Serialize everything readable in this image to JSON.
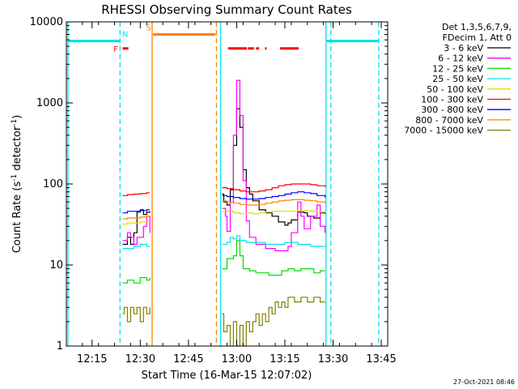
{
  "chart_data": {
    "type": "line",
    "title": "RHESSI Observing Summary Count Rates",
    "xlabel": "Start Time (16-Mar-15 12:07:02)",
    "ylabel_main": "Count Rate (s",
    "ylabel_sup1": "-1",
    "ylabel_mid": " detector",
    "ylabel_sup2": "-1",
    "ylabel_end": ")",
    "y_scale": "log",
    "ylim": [
      1,
      10000
    ],
    "xlim_min": [
      7,
      107
    ],
    "x_ticks": [
      {
        "label": "12:15",
        "min": 15
      },
      {
        "label": "12:30",
        "min": 30
      },
      {
        "label": "12:45",
        "min": 45
      },
      {
        "label": "13:00",
        "min": 60
      },
      {
        "label": "13:15",
        "min": 75
      },
      {
        "label": "13:30",
        "min": 90
      },
      {
        "label": "13:45",
        "min": 105
      }
    ],
    "y_ticks": [
      {
        "label": "1",
        "v": 1
      },
      {
        "label": "10",
        "v": 10
      },
      {
        "label": "100",
        "v": 100
      },
      {
        "label": "1000",
        "v": 1000
      },
      {
        "label": "10000",
        "v": 10000
      }
    ],
    "legend_header": [
      "Det 1,3,5,6,7,9,",
      "FDecim 1, Att 0"
    ],
    "legend_position": "right",
    "series": [
      {
        "name": "3 - 6 keV",
        "color": "#000000",
        "seg1": [
          [
            24.5,
            18
          ],
          [
            26,
            22
          ],
          [
            27,
            18
          ],
          [
            28,
            25
          ],
          [
            29,
            45
          ],
          [
            30,
            48
          ],
          [
            31,
            42
          ],
          [
            32,
            45
          ],
          [
            33,
            44
          ]
        ],
        "seg2": [
          [
            55.5,
            75
          ],
          [
            56,
            60
          ],
          [
            57,
            55
          ],
          [
            58,
            85
          ],
          [
            59,
            300
          ],
          [
            60,
            850
          ],
          [
            61,
            500
          ],
          [
            62,
            150
          ],
          [
            63,
            90
          ],
          [
            64,
            75
          ],
          [
            65,
            62
          ],
          [
            67,
            48
          ],
          [
            69,
            44
          ],
          [
            71,
            40
          ],
          [
            73,
            34
          ],
          [
            75,
            31
          ],
          [
            76,
            33
          ],
          [
            77,
            36
          ],
          [
            79,
            45
          ],
          [
            81,
            44
          ],
          [
            82,
            40
          ],
          [
            84,
            38
          ],
          [
            86,
            44
          ],
          [
            87.5,
            43
          ]
        ]
      },
      {
        "name": "6 - 12 keV",
        "color": "#ff00ff",
        "seg1": [
          [
            24.5,
            20
          ],
          [
            26,
            25
          ],
          [
            27,
            22
          ],
          [
            28,
            18
          ],
          [
            29,
            22
          ],
          [
            31,
            30
          ],
          [
            32,
            40
          ],
          [
            33,
            25
          ]
        ],
        "seg2": [
          [
            55.5,
            50
          ],
          [
            56.5,
            40
          ],
          [
            57,
            26
          ],
          [
            58,
            60
          ],
          [
            59,
            400
          ],
          [
            60,
            1900
          ],
          [
            61,
            700
          ],
          [
            62,
            110
          ],
          [
            63,
            35
          ],
          [
            64,
            22
          ],
          [
            66,
            18
          ],
          [
            69,
            16
          ],
          [
            72,
            15
          ],
          [
            75,
            15
          ],
          [
            76,
            17
          ],
          [
            77,
            25
          ],
          [
            79,
            60
          ],
          [
            80,
            40
          ],
          [
            81,
            28
          ],
          [
            83,
            40
          ],
          [
            85,
            55
          ],
          [
            86,
            30
          ],
          [
            87.5,
            25
          ]
        ]
      },
      {
        "name": "12 - 25 keV",
        "color": "#00dd00",
        "seg1": [
          [
            24.5,
            6
          ],
          [
            26,
            6.5
          ],
          [
            28,
            6
          ],
          [
            30,
            7
          ],
          [
            32,
            6.5
          ],
          [
            33,
            7
          ]
        ],
        "seg2": [
          [
            55.5,
            9
          ],
          [
            57,
            12
          ],
          [
            58,
            12
          ],
          [
            59,
            13
          ],
          [
            60,
            20
          ],
          [
            61,
            13
          ],
          [
            62,
            9
          ],
          [
            64,
            8.5
          ],
          [
            66,
            8
          ],
          [
            68,
            8
          ],
          [
            70,
            7.5
          ],
          [
            72,
            7.5
          ],
          [
            74,
            8.5
          ],
          [
            76,
            9
          ],
          [
            78,
            8.5
          ],
          [
            80,
            9
          ],
          [
            82,
            9
          ],
          [
            84,
            8
          ],
          [
            86,
            8.5
          ],
          [
            87.5,
            8.5
          ]
        ]
      },
      {
        "name": "25 - 50 keV",
        "color": "#00e0e8",
        "seg1": [
          [
            24.5,
            16
          ],
          [
            26,
            16
          ],
          [
            28,
            17
          ],
          [
            30,
            18
          ],
          [
            32,
            17
          ],
          [
            33,
            17
          ]
        ],
        "seg2": [
          [
            55.5,
            18
          ],
          [
            57,
            19
          ],
          [
            58,
            22
          ],
          [
            59,
            21
          ],
          [
            60,
            23
          ],
          [
            61,
            20
          ],
          [
            63,
            19
          ],
          [
            65,
            19
          ],
          [
            67,
            19
          ],
          [
            69,
            18
          ],
          [
            71,
            18
          ],
          [
            73,
            18
          ],
          [
            75,
            19
          ],
          [
            77,
            19
          ],
          [
            79,
            18
          ],
          [
            81,
            18
          ],
          [
            83,
            17
          ],
          [
            85,
            17
          ],
          [
            87.5,
            17
          ]
        ]
      },
      {
        "name": "50 - 100 keV",
        "color": "#e8d800",
        "seg1": [
          [
            24.5,
            32
          ],
          [
            26,
            33
          ],
          [
            28,
            33
          ],
          [
            30,
            34
          ],
          [
            32,
            34
          ],
          [
            33,
            34
          ]
        ],
        "seg2": [
          [
            55.5,
            46
          ],
          [
            57,
            46
          ],
          [
            59,
            44
          ],
          [
            61,
            43
          ],
          [
            63,
            44
          ],
          [
            65,
            43
          ],
          [
            67,
            44
          ],
          [
            69,
            45
          ],
          [
            71,
            46
          ],
          [
            73,
            46
          ],
          [
            75,
            46
          ],
          [
            77,
            46
          ],
          [
            79,
            47
          ],
          [
            81,
            47
          ],
          [
            83,
            46
          ],
          [
            85,
            45
          ],
          [
            87.5,
            44
          ]
        ]
      },
      {
        "name": "100 - 300 keV",
        "color": "#ff0000",
        "seg1": [
          [
            24.5,
            72
          ],
          [
            26,
            74
          ],
          [
            28,
            75
          ],
          [
            30,
            76
          ],
          [
            32,
            78
          ],
          [
            33,
            78
          ]
        ],
        "seg2": [
          [
            55.5,
            90
          ],
          [
            57,
            88
          ],
          [
            59,
            85
          ],
          [
            61,
            82
          ],
          [
            63,
            80
          ],
          [
            65,
            80
          ],
          [
            67,
            82
          ],
          [
            69,
            85
          ],
          [
            71,
            90
          ],
          [
            73,
            95
          ],
          [
            75,
            98
          ],
          [
            77,
            100
          ],
          [
            79,
            100
          ],
          [
            81,
            100
          ],
          [
            83,
            98
          ],
          [
            85,
            95
          ],
          [
            87.5,
            92
          ]
        ]
      },
      {
        "name": "300 - 800 keV",
        "color": "#0000ff",
        "seg1": [
          [
            24.5,
            44
          ],
          [
            26,
            46
          ],
          [
            28,
            46
          ],
          [
            30,
            47
          ],
          [
            32,
            48
          ],
          [
            33,
            48
          ]
        ],
        "seg2": [
          [
            55.5,
            72
          ],
          [
            57,
            70
          ],
          [
            59,
            68
          ],
          [
            61,
            66
          ],
          [
            63,
            65
          ],
          [
            65,
            65
          ],
          [
            67,
            66
          ],
          [
            69,
            68
          ],
          [
            71,
            70
          ],
          [
            73,
            72
          ],
          [
            75,
            75
          ],
          [
            77,
            78
          ],
          [
            79,
            80
          ],
          [
            81,
            78
          ],
          [
            83,
            76
          ],
          [
            85,
            72
          ],
          [
            87.5,
            68
          ]
        ]
      },
      {
        "name": "800 - 7000 keV",
        "color": "#ff8000",
        "seg1": [
          [
            24.5,
            37
          ],
          [
            26,
            38
          ],
          [
            28,
            38
          ],
          [
            30,
            39
          ],
          [
            32,
            40
          ],
          [
            33,
            40
          ]
        ],
        "seg2": [
          [
            55.5,
            62
          ],
          [
            57,
            60
          ],
          [
            59,
            58
          ],
          [
            61,
            56
          ],
          [
            63,
            55
          ],
          [
            65,
            55
          ],
          [
            67,
            56
          ],
          [
            69,
            58
          ],
          [
            71,
            60
          ],
          [
            73,
            62
          ],
          [
            75,
            63
          ],
          [
            77,
            64
          ],
          [
            79,
            64
          ],
          [
            81,
            63
          ],
          [
            83,
            62
          ],
          [
            85,
            60
          ],
          [
            87.5,
            58
          ]
        ]
      },
      {
        "name": "7000 - 15000 keV",
        "color": "#808000",
        "seg1": [
          [
            24.5,
            2.5
          ],
          [
            25,
            3
          ],
          [
            26,
            2
          ],
          [
            27,
            3
          ],
          [
            28,
            2.5
          ],
          [
            29,
            3
          ],
          [
            30,
            2
          ],
          [
            31,
            3
          ],
          [
            32,
            2.5
          ],
          [
            33,
            3
          ]
        ],
        "seg2": [
          [
            55.5,
            2.5
          ],
          [
            56,
            1.5
          ],
          [
            57,
            1.8
          ],
          [
            58,
            1
          ],
          [
            59,
            2
          ],
          [
            60,
            1
          ],
          [
            61,
            1.8
          ],
          [
            62,
            1
          ],
          [
            63,
            2
          ],
          [
            64,
            1.5
          ],
          [
            65,
            2
          ],
          [
            66,
            2.5
          ],
          [
            67,
            1.8
          ],
          [
            68,
            2.5
          ],
          [
            69,
            2
          ],
          [
            70,
            3
          ],
          [
            71,
            2.5
          ],
          [
            72,
            3.5
          ],
          [
            73,
            3
          ],
          [
            74,
            3.5
          ],
          [
            75,
            3
          ],
          [
            76,
            4
          ],
          [
            78,
            3.5
          ],
          [
            80,
            4
          ],
          [
            82,
            3.5
          ],
          [
            84,
            4
          ],
          [
            86,
            3.5
          ],
          [
            87.5,
            3.5
          ]
        ]
      }
    ],
    "vlines": [
      {
        "min": 7.5,
        "color": "#00e0e8",
        "dashed": false
      },
      {
        "min": 23.7,
        "color": "#00e0e8",
        "dashed": true
      },
      {
        "min": 33.7,
        "color": "#ff8000",
        "dashed": false
      },
      {
        "min": 53.7,
        "color": "#ff8000",
        "dashed": true
      },
      {
        "min": 55.0,
        "color": "#00e0e8",
        "dashed": false
      },
      {
        "min": 87.8,
        "color": "#00e0e8",
        "dashed": false
      },
      {
        "min": 89.3,
        "color": "#00e0e8",
        "dashed": true
      },
      {
        "min": 104.2,
        "color": "#00e0e8",
        "dashed": true
      }
    ],
    "flag_bars": [
      {
        "x0": 7.5,
        "x1": 23.7,
        "v": 5800,
        "color": "#00e0e8",
        "width": 3
      },
      {
        "x0": 87.8,
        "x1": 104.2,
        "v": 5800,
        "color": "#00e0e8",
        "width": 3
      },
      {
        "x0": 34.0,
        "x1": 53.4,
        "v": 7000,
        "color": "#ff8000",
        "width": 3
      },
      {
        "x0": 24.5,
        "x1": 26.3,
        "v": 4700,
        "color": "#ff0000",
        "width": 3
      },
      {
        "x0": 57.3,
        "x1": 63.2,
        "v": 4700,
        "color": "#ff0000",
        "width": 3
      },
      {
        "x0": 63.5,
        "x1": 65.4,
        "v": 4700,
        "color": "#ff0000",
        "width": 3
      },
      {
        "x0": 66.0,
        "x1": 67.0,
        "v": 4700,
        "color": "#ff0000",
        "width": 3
      },
      {
        "x0": 68.8,
        "x1": 69.3,
        "v": 4700,
        "color": "#ff0000",
        "width": 3
      },
      {
        "x0": 73.5,
        "x1": 79.3,
        "v": 4700,
        "color": "#ff0000",
        "width": 3
      }
    ],
    "flag_labels": [
      {
        "text": "F",
        "min": 22.4,
        "v": 4700,
        "color": "#ff0000"
      },
      {
        "text": "N",
        "min": 25.3,
        "v": 7200,
        "color": "#00e0e8"
      },
      {
        "text": "S",
        "min": 32.6,
        "v": 8600,
        "color": "#ff8000"
      }
    ],
    "timestamp": "27-Oct-2021 08:46"
  }
}
